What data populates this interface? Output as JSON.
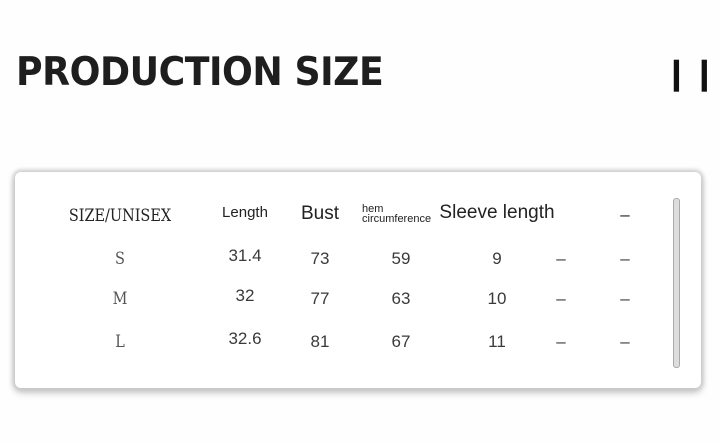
{
  "title": "PRODUCTION SIZE",
  "menu_icon": "three-vertical-bars-icon",
  "table": {
    "headers": [
      "SIZE/UNISEX",
      "Length",
      "Bust",
      "hem circumference",
      "Sleeve length",
      "",
      "–"
    ],
    "hem_line1": "hem",
    "hem_line2": "circumference",
    "rows": [
      [
        "S",
        "31.4",
        "73",
        "59",
        "9",
        "–",
        "–"
      ],
      [
        "M",
        "32",
        "77",
        "63",
        "10",
        "–",
        "–"
      ],
      [
        "L",
        "32.6",
        "81",
        "67",
        "11",
        "–",
        "–"
      ]
    ]
  }
}
